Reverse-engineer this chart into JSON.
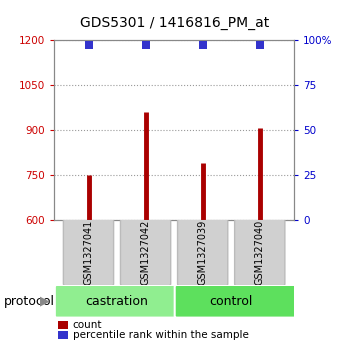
{
  "title": "GDS5301 / 1416816_PM_at",
  "samples": [
    "GSM1327041",
    "GSM1327042",
    "GSM1327039",
    "GSM1327040"
  ],
  "counts": [
    748,
    960,
    790,
    905
  ],
  "percentile_ranks": [
    97,
    97,
    97,
    97
  ],
  "ylim_left": [
    600,
    1200
  ],
  "ylim_right": [
    0,
    100
  ],
  "yticks_left": [
    600,
    750,
    900,
    1050,
    1200
  ],
  "yticks_right": [
    0,
    25,
    50,
    75,
    100
  ],
  "ytick_labels_right": [
    "0",
    "25",
    "50",
    "75",
    "100%"
  ],
  "groups": [
    {
      "label": "castration",
      "indices": [
        0,
        1
      ],
      "color": "#90EE90"
    },
    {
      "label": "control",
      "indices": [
        2,
        3
      ],
      "color": "#5DE05D"
    }
  ],
  "bar_color": "#AA0000",
  "dot_color": "#3333CC",
  "bar_width": 0.08,
  "dot_size": 35,
  "grid_color": "#999999",
  "bg_color": "#FFFFFF",
  "sample_box_color": "#D0D0D0",
  "sample_box_edge": "#BBBBBB",
  "protocol_label": "protocol",
  "legend_count_label": "count",
  "legend_pct_label": "percentile rank within the sample",
  "title_fontsize": 10,
  "tick_fontsize": 7.5,
  "sample_fontsize": 7,
  "group_fontsize": 9,
  "legend_fontsize": 7.5
}
